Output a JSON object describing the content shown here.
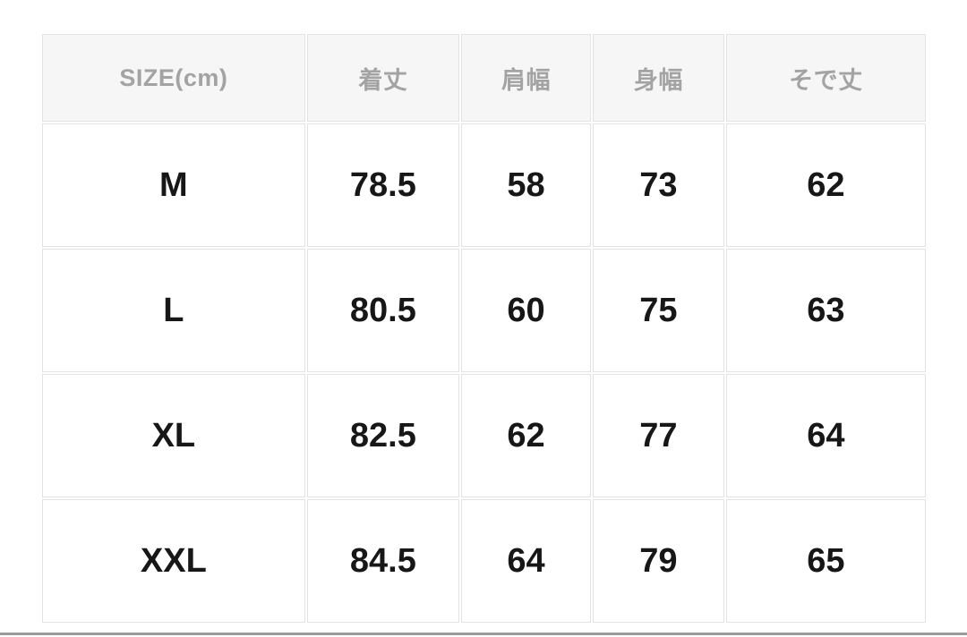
{
  "size_chart": {
    "columns": [
      "SIZE(cm)",
      "着丈",
      "肩幅",
      "身幅",
      "そで丈"
    ],
    "rows": [
      [
        "M",
        "78.5",
        "58",
        "73",
        "62"
      ],
      [
        "L",
        "80.5",
        "60",
        "75",
        "63"
      ],
      [
        "XL",
        "82.5",
        "62",
        "77",
        "64"
      ],
      [
        "XXL",
        "84.5",
        "64",
        "79",
        "65"
      ]
    ],
    "colors": {
      "header_background": "#f6f6f6",
      "header_text": "#a3a3a3",
      "cell_text": "#171717",
      "cell_border": "#e3e3e3",
      "bottom_bar": "#9b9b9b",
      "page_background": "#ffffff"
    }
  }
}
